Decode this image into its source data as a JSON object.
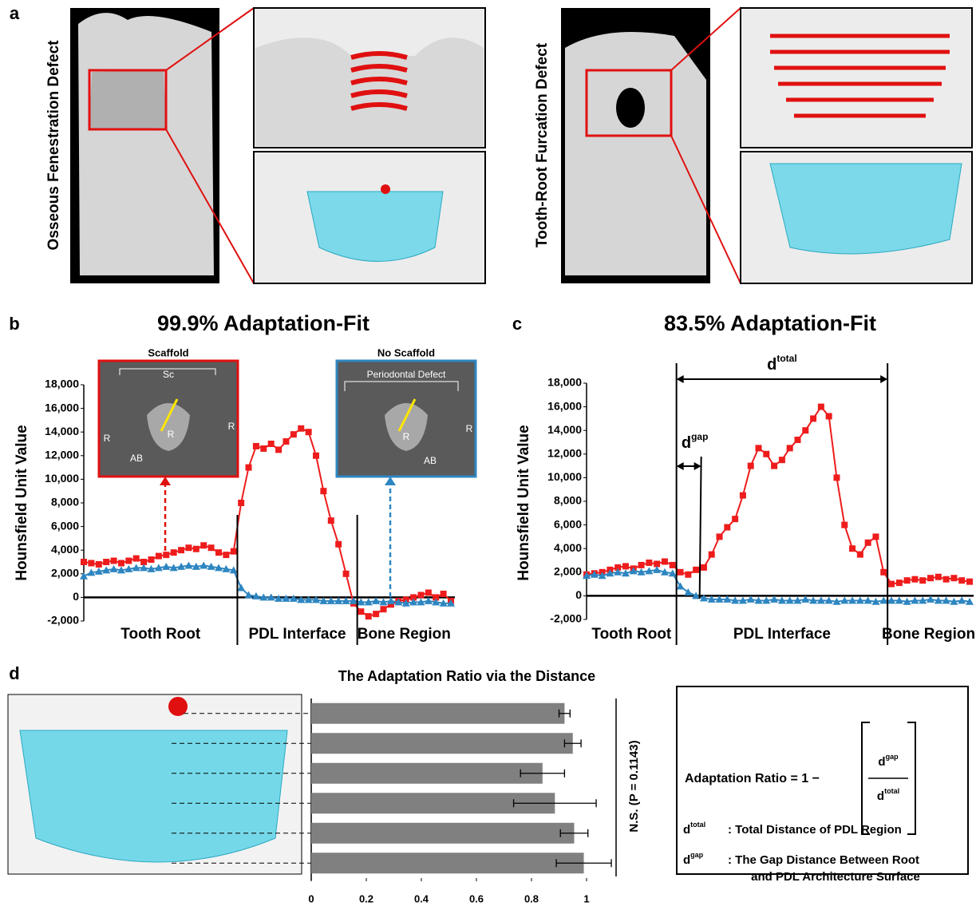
{
  "panel_labels": [
    "a",
    "b",
    "c",
    "d"
  ],
  "panel_a": {
    "left_label": "Osseous Fenestration Defect",
    "right_label": "Tooth-Root Furcation Defect"
  },
  "insets": {
    "scaffold": {
      "title": "Scaffold",
      "labels": [
        "Sc",
        "R",
        "R",
        "R",
        "AB"
      ]
    },
    "no_scaffold": {
      "title": "No Scaffold",
      "labels": [
        "Periodontal Defect",
        "R",
        "R",
        "AB"
      ]
    }
  },
  "c_annotations": {
    "d_total": {
      "base": "d",
      "sup": "total"
    },
    "d_gap": {
      "base": "d",
      "sup": "gap"
    }
  },
  "formula": {
    "lhs": "Adaptation Ratio = 1 −",
    "numerator": {
      "base": "d",
      "sup": "gap"
    },
    "denominator": {
      "base": "d",
      "sup": "total"
    },
    "defs": [
      {
        "term": {
          "base": "d",
          "sup": "total"
        },
        "lines": [
          ": Total Distance of PDL Region"
        ]
      },
      {
        "term": {
          "base": "d",
          "sup": "gap"
        },
        "lines": [
          ": The Gap Distance Between Root",
          "and PDL Architecture Surface"
        ]
      }
    ]
  },
  "chart_data": [
    {
      "type": "line",
      "title": "99.9% Adaptation-Fit",
      "y_label": "Hounsfield  Unit  Value",
      "regions": [
        "Tooth Root",
        "PDL Interface",
        "Bone Region"
      ],
      "ylim": [
        -2000,
        18000
      ],
      "yticks": [
        {
          "value": -2000,
          "label": "-2,000"
        },
        0,
        {
          "value": 2000,
          "label": "2,000"
        },
        {
          "value": 4000,
          "label": "4,000"
        },
        {
          "value": 6000,
          "label": "6,000"
        },
        {
          "value": 8000,
          "label": "8,000"
        },
        {
          "value": 10000,
          "label": "10,000"
        },
        {
          "value": 12000,
          "label": "12,000"
        },
        {
          "value": 14000,
          "label": "14,000"
        },
        {
          "value": 16000,
          "label": "16,000"
        },
        {
          "value": 18000,
          "label": "18,000"
        }
      ],
      "series": [
        {
          "color": "#ee1c1c",
          "marker": "square",
          "values": [
            3000,
            2900,
            2800,
            3000,
            3100,
            2900,
            3100,
            3300,
            3000,
            3200,
            3500,
            3600,
            3800,
            4000,
            4200,
            4100,
            4400,
            4200,
            3800,
            3600,
            3900,
            8000,
            11000,
            12800,
            12600,
            13000,
            12500,
            13200,
            13800,
            14300,
            14000,
            12000,
            9000,
            6500,
            4500,
            2000,
            -500,
            -1200,
            -1600,
            -1400,
            -1000,
            -600,
            -300,
            -200,
            0,
            200,
            400,
            0,
            300,
            -300
          ]
        },
        {
          "color": "#2e86c1",
          "marker": "triangle",
          "values": [
            1800,
            2100,
            2200,
            2300,
            2400,
            2300,
            2400,
            2500,
            2500,
            2400,
            2500,
            2600,
            2500,
            2600,
            2700,
            2600,
            2700,
            2600,
            2500,
            2400,
            2300,
            800,
            200,
            100,
            0,
            0,
            -100,
            -100,
            -100,
            -200,
            -200,
            -200,
            -300,
            -300,
            -300,
            -300,
            -300,
            -400,
            -400,
            -300,
            -400,
            -300,
            -400,
            -500,
            -400,
            -400,
            -300,
            -400,
            -500,
            -500
          ]
        }
      ]
    },
    {
      "type": "line",
      "title": "83.5% Adaptation-Fit",
      "y_label": "Hounsfield  Unit  Value",
      "regions": [
        "Tooth Root",
        "PDL Interface",
        "Bone Region"
      ],
      "ylim": [
        -2000,
        18000
      ],
      "yticks": [
        {
          "value": -2000,
          "label": "-2,000"
        },
        0,
        {
          "value": 2000,
          "label": "2,000"
        },
        {
          "value": 4000,
          "label": "4,000"
        },
        {
          "value": 6000,
          "label": "6,000"
        },
        {
          "value": 8000,
          "label": "8,000"
        },
        {
          "value": 10000,
          "label": "10,000"
        },
        {
          "value": 12000,
          "label": "12,000"
        },
        {
          "value": 14000,
          "label": "14,000"
        },
        {
          "value": 16000,
          "label": "16,000"
        },
        {
          "value": 18000,
          "label": "18,000"
        }
      ],
      "series": [
        {
          "color": "#ee1c1c",
          "marker": "square",
          "values": [
            1800,
            1900,
            2000,
            2200,
            2400,
            2500,
            2300,
            2600,
            2800,
            2700,
            2900,
            2600,
            2000,
            1800,
            2200,
            2400,
            3500,
            5000,
            5800,
            6500,
            8500,
            11000,
            12500,
            12000,
            11000,
            11500,
            12500,
            13200,
            14000,
            15000,
            16000,
            15200,
            10000,
            6000,
            4000,
            3500,
            4500,
            5000,
            2000,
            1000,
            1100,
            1300,
            1400,
            1300,
            1500,
            1600,
            1400,
            1500,
            1300,
            1200
          ]
        },
        {
          "color": "#2e86c1",
          "marker": "triangle",
          "values": [
            1700,
            1800,
            1700,
            1900,
            2000,
            1900,
            2100,
            2000,
            2100,
            2200,
            2000,
            1900,
            800,
            300,
            0,
            -200,
            -300,
            -300,
            -300,
            -400,
            -400,
            -300,
            -400,
            -400,
            -300,
            -400,
            -400,
            -400,
            -300,
            -400,
            -400,
            -400,
            -500,
            -400,
            -400,
            -400,
            -400,
            -500,
            -400,
            -400,
            -400,
            -500,
            -400,
            -400,
            -300,
            -400,
            -400,
            -500,
            -400,
            -500
          ]
        }
      ]
    },
    {
      "type": "hbar",
      "title": "The Adaptation Ratio via the Distance",
      "annotation": "N.S. (P = 0.1143)",
      "color": "#808080",
      "values": [
        0.92,
        0.95,
        0.84,
        0.885,
        0.955,
        0.99
      ],
      "errors": [
        0.02,
        0.03,
        0.08,
        0.15,
        0.05,
        0.1
      ],
      "xlim": [
        0,
        1.1
      ],
      "xticks": [
        0,
        0.2,
        0.4,
        0.6,
        0.8,
        1
      ]
    }
  ]
}
